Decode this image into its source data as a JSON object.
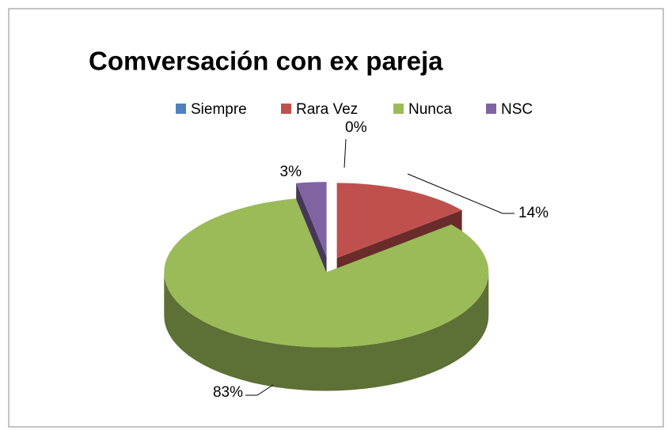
{
  "chart_data": {
    "type": "pie",
    "title": "Comversación con ex pareja",
    "categories": [
      "Siempre",
      "Rara Vez",
      "Nunca",
      "NSC"
    ],
    "values": [
      0,
      14,
      83,
      3
    ],
    "value_labels": [
      "0%",
      "14%",
      "83%",
      "3%"
    ],
    "colors": [
      "#4f81bd",
      "#c0504d",
      "#9bbb59",
      "#8064a2"
    ],
    "legend": "top"
  }
}
